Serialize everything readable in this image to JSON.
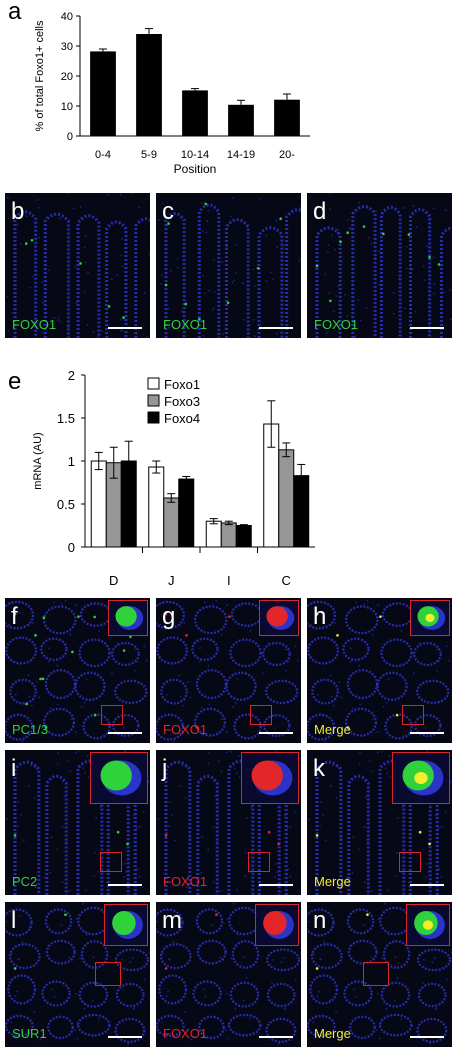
{
  "panels": {
    "a": "a",
    "b": "b",
    "c": "c",
    "d": "d",
    "e": "e",
    "f": "f",
    "g": "g",
    "h": "h",
    "i": "i",
    "j": "j",
    "k": "k",
    "l": "l",
    "m": "m",
    "n": "n"
  },
  "row_bcd": {
    "stains": [
      "FOXO1",
      "FOXO1",
      "FOXO1"
    ]
  },
  "grid": {
    "rows": [
      {
        "stains": [
          "PC1/3",
          "FOXO1",
          "Merge"
        ]
      },
      {
        "stains": [
          "PC2",
          "FOXO1",
          "Merge"
        ]
      },
      {
        "stains": [
          "SUR1",
          "FOXO1",
          "Merge"
        ]
      }
    ]
  },
  "colors": {
    "micro_bg": "#070816",
    "nuclei": "#2b34c8",
    "green": "#2fd23a",
    "red": "#e2262a",
    "yellow": "#f2ee2a",
    "roi_box": "#d8242a"
  },
  "chart_data": [
    {
      "type": "bar",
      "categories": [
        "0-4",
        "5-9",
        "10-14",
        "14-19",
        "20-"
      ],
      "values": [
        28.2,
        34.0,
        15.2,
        10.4,
        12.1
      ],
      "errors": [
        0.8,
        1.8,
        0.6,
        1.5,
        1.9
      ],
      "xlabel": "Position",
      "ylabel": "% of total Foxo1+ cells",
      "ylim": [
        0,
        40
      ],
      "yticks": [
        0,
        10,
        20,
        30,
        40
      ],
      "color": "#000000",
      "grid": false
    },
    {
      "type": "bar",
      "categories": [
        "D",
        "J",
        "I",
        "C"
      ],
      "series": [
        {
          "name": "Foxo1",
          "values": [
            1.0,
            0.93,
            0.3,
            1.43
          ],
          "errors": [
            0.1,
            0.07,
            0.03,
            0.27
          ],
          "color": "#ffffff"
        },
        {
          "name": "Foxo3",
          "values": [
            0.98,
            0.57,
            0.28,
            1.13
          ],
          "errors": [
            0.18,
            0.05,
            0.02,
            0.08
          ],
          "color": "#969696"
        },
        {
          "name": "Foxo4",
          "values": [
            1.0,
            0.79,
            0.25,
            0.83
          ],
          "errors": [
            0.23,
            0.03,
            0.01,
            0.13
          ],
          "color": "#000000"
        }
      ],
      "ylabel": "mRNA (AU)",
      "ylim": [
        0,
        2
      ],
      "yticks": [
        "0",
        "0.5",
        "1",
        "1.5",
        "2"
      ],
      "legend": "top-left",
      "grid": false
    }
  ]
}
